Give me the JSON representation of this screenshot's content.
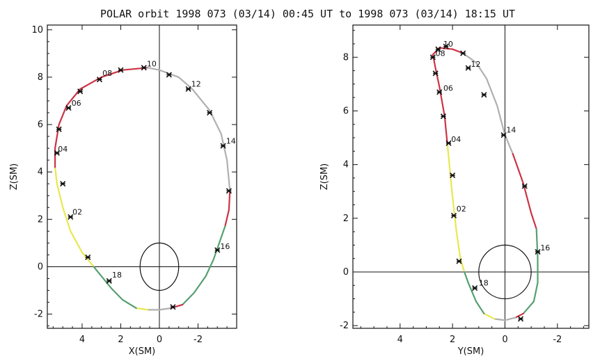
{
  "title": "POLAR orbit 1998 073 (03/14) 00:45 UT to 1998 073 (03/14) 18:15 UT",
  "colors": {
    "red": "#cc3344",
    "yellow": "#e8e850",
    "gray": "#b0b0b0",
    "green": "#55a070",
    "axis": "#111111"
  },
  "chart_data": [
    {
      "type": "line",
      "xlabel": "X(SM)",
      "ylabel": "Z(SM)",
      "xlim": [
        5.8,
        -4.0
      ],
      "ylim": [
        -2.6,
        10.2
      ],
      "xticks": [
        4,
        2,
        0,
        -2
      ],
      "xtick_labels": [
        "4",
        "2",
        "0",
        "-2"
      ],
      "yticks": [
        -2,
        0,
        2,
        4,
        6,
        8,
        10
      ],
      "ytick_labels": [
        "-2",
        "0",
        "2",
        "4",
        "6",
        "8",
        "10"
      ],
      "crosshair": true,
      "earth_radius": 1,
      "segments": [
        {
          "color": "yellow",
          "points": [
            [
              3.4,
              0.0
            ],
            [
              4.0,
              0.6
            ],
            [
              4.6,
              1.5
            ],
            [
              5.0,
              2.5
            ],
            [
              5.3,
              3.5
            ],
            [
              5.4,
              4.2
            ]
          ]
        },
        {
          "color": "red",
          "points": [
            [
              5.4,
              4.2
            ],
            [
              5.4,
              5.0
            ],
            [
              5.2,
              6.0
            ],
            [
              4.8,
              6.8
            ],
            [
              4.1,
              7.5
            ],
            [
              3.0,
              8.0
            ],
            [
              1.9,
              8.3
            ],
            [
              0.6,
              8.4
            ]
          ]
        },
        {
          "color": "gray",
          "points": [
            [
              0.6,
              8.4
            ],
            [
              0.0,
              8.3
            ],
            [
              -1.0,
              8.0
            ],
            [
              -1.7,
              7.5
            ],
            [
              -2.6,
              6.6
            ],
            [
              -3.2,
              5.6
            ],
            [
              -3.5,
              4.5
            ],
            [
              -3.65,
              3.2
            ]
          ]
        },
        {
          "color": "red",
          "points": [
            [
              -3.65,
              3.2
            ],
            [
              -3.6,
              2.4
            ],
            [
              -3.4,
              1.7
            ]
          ]
        },
        {
          "color": "green",
          "points": [
            [
              -3.4,
              1.7
            ],
            [
              -3.1,
              1.0
            ],
            [
              -2.8,
              0.3
            ],
            [
              -2.4,
              -0.4
            ],
            [
              -1.8,
              -1.1
            ],
            [
              -1.2,
              -1.6
            ]
          ]
        },
        {
          "color": "red",
          "points": [
            [
              -1.2,
              -1.6
            ],
            [
              -0.6,
              -1.75
            ]
          ]
        },
        {
          "color": "gray",
          "points": [
            [
              -0.6,
              -1.75
            ],
            [
              0.0,
              -1.82
            ],
            [
              0.6,
              -1.82
            ]
          ]
        },
        {
          "color": "yellow",
          "points": [
            [
              0.6,
              -1.82
            ],
            [
              1.2,
              -1.75
            ]
          ]
        },
        {
          "color": "green",
          "points": [
            [
              1.2,
              -1.75
            ],
            [
              1.9,
              -1.4
            ],
            [
              2.5,
              -0.9
            ],
            [
              3.0,
              -0.4
            ],
            [
              3.4,
              0.0
            ]
          ]
        }
      ],
      "markers": [
        [
          3.7,
          0.4
        ],
        [
          5.0,
          3.5
        ],
        [
          4.6,
          2.1
        ],
        [
          5.3,
          4.8
        ],
        [
          5.2,
          5.8
        ],
        [
          4.7,
          6.7
        ],
        [
          4.1,
          7.4
        ],
        [
          3.1,
          7.9
        ],
        [
          2.0,
          8.3
        ],
        [
          0.8,
          8.4
        ],
        [
          -0.5,
          8.1
        ],
        [
          -1.5,
          7.5
        ],
        [
          -2.6,
          6.5
        ],
        [
          -3.3,
          5.1
        ],
        [
          -3.6,
          3.2
        ],
        [
          -3.0,
          0.7
        ],
        [
          -0.7,
          -1.7
        ],
        [
          2.6,
          -0.6
        ]
      ],
      "hour_labels": [
        {
          "text": "02",
          "x": 4.5,
          "y": 2.2
        },
        {
          "text": "04",
          "x": 5.25,
          "y": 4.85
        },
        {
          "text": "06",
          "x": 4.55,
          "y": 6.8
        },
        {
          "text": "08",
          "x": 2.95,
          "y": 8.05
        },
        {
          "text": "10",
          "x": 0.65,
          "y": 8.45
        },
        {
          "text": "12",
          "x": -1.65,
          "y": 7.6
        },
        {
          "text": "14",
          "x": -3.45,
          "y": 5.2
        },
        {
          "text": "16",
          "x": -3.15,
          "y": 0.75
        },
        {
          "text": "18",
          "x": 2.45,
          "y": -0.45
        }
      ]
    },
    {
      "type": "line",
      "xlabel": "Y(SM)",
      "ylabel": "Z(SM)",
      "xlim": [
        5.8,
        -3.2
      ],
      "ylim": [
        -2.1,
        9.2
      ],
      "xticks": [
        4,
        2,
        0,
        -2
      ],
      "xtick_labels": [
        "4",
        "2",
        "0",
        "-2"
      ],
      "yticks": [
        -2,
        0,
        2,
        4,
        6,
        8
      ],
      "ytick_labels": [
        "-2",
        "0",
        "2",
        "4",
        "6",
        "8"
      ],
      "crosshair": true,
      "earth_radius": 1,
      "segments": [
        {
          "color": "yellow",
          "points": [
            [
              1.55,
              0.0
            ],
            [
              1.7,
              0.5
            ],
            [
              1.85,
              1.5
            ],
            [
              2.0,
              2.8
            ],
            [
              2.1,
              3.8
            ],
            [
              2.2,
              4.8
            ]
          ]
        },
        {
          "color": "red",
          "points": [
            [
              2.2,
              4.8
            ],
            [
              2.3,
              5.8
            ],
            [
              2.5,
              6.9
            ],
            [
              2.65,
              7.6
            ],
            [
              2.75,
              8.1
            ],
            [
              2.5,
              8.35
            ],
            [
              2.0,
              8.3
            ],
            [
              1.6,
              8.15
            ]
          ]
        },
        {
          "color": "gray",
          "points": [
            [
              1.6,
              8.15
            ],
            [
              1.1,
              7.8
            ],
            [
              0.7,
              7.2
            ],
            [
              0.3,
              6.2
            ],
            [
              0.0,
              5.1
            ],
            [
              -0.3,
              4.4
            ]
          ]
        },
        {
          "color": "red",
          "points": [
            [
              -0.3,
              4.4
            ],
            [
              -0.7,
              3.3
            ],
            [
              -1.0,
              2.2
            ],
            [
              -1.2,
              1.6
            ]
          ]
        },
        {
          "color": "green",
          "points": [
            [
              -1.2,
              1.6
            ],
            [
              -1.25,
              0.5
            ],
            [
              -1.25,
              -0.4
            ],
            [
              -1.1,
              -1.1
            ],
            [
              -0.7,
              -1.55
            ]
          ]
        },
        {
          "color": "red",
          "points": [
            [
              -0.7,
              -1.55
            ],
            [
              -0.4,
              -1.7
            ]
          ]
        },
        {
          "color": "gray",
          "points": [
            [
              -0.4,
              -1.7
            ],
            [
              0.0,
              -1.8
            ],
            [
              0.4,
              -1.75
            ]
          ]
        },
        {
          "color": "yellow",
          "points": [
            [
              0.4,
              -1.75
            ],
            [
              0.8,
              -1.55
            ]
          ]
        },
        {
          "color": "green",
          "points": [
            [
              0.8,
              -1.55
            ],
            [
              1.1,
              -1.1
            ],
            [
              1.4,
              -0.4
            ],
            [
              1.55,
              0.0
            ]
          ]
        }
      ],
      "markers": [
        [
          1.75,
          0.4
        ],
        [
          2.0,
          3.6
        ],
        [
          1.95,
          2.1
        ],
        [
          2.15,
          4.8
        ],
        [
          2.35,
          5.8
        ],
        [
          2.5,
          6.7
        ],
        [
          2.65,
          7.4
        ],
        [
          2.75,
          8.0
        ],
        [
          2.55,
          8.3
        ],
        [
          1.6,
          8.15
        ],
        [
          1.4,
          7.6
        ],
        [
          0.8,
          6.6
        ],
        [
          0.05,
          5.1
        ],
        [
          -0.75,
          3.2
        ],
        [
          -1.25,
          0.75
        ],
        [
          -0.6,
          -1.75
        ],
        [
          1.15,
          -0.6
        ],
        [
          2.25,
          8.4
        ]
      ],
      "hour_labels": [
        {
          "text": "02",
          "x": 1.85,
          "y": 2.25
        },
        {
          "text": "04",
          "x": 2.05,
          "y": 4.85
        },
        {
          "text": "06",
          "x": 2.35,
          "y": 6.75
        },
        {
          "text": "08",
          "x": 2.65,
          "y": 8.05
        },
        {
          "text": "10",
          "x": 2.35,
          "y": 8.4
        },
        {
          "text": "12",
          "x": 1.3,
          "y": 7.65
        },
        {
          "text": "14",
          "x": -0.05,
          "y": 5.2
        },
        {
          "text": "16",
          "x": -1.35,
          "y": 0.8
        },
        {
          "text": "18",
          "x": 1.0,
          "y": -0.5
        }
      ]
    }
  ]
}
